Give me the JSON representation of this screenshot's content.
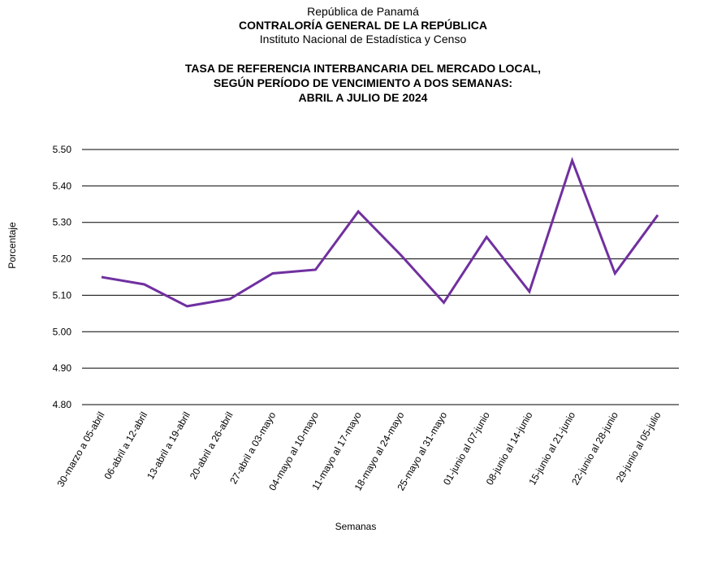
{
  "header": {
    "line1": "República de Panamá",
    "line2": "CONTRALORÍA GENERAL DE LA REPÚBLICA",
    "line3": "Instituto Nacional de Estadística y Censo"
  },
  "chart_data": {
    "type": "line",
    "title": [
      "TASA DE REFERENCIA INTERBANCARIA DEL MERCADO LOCAL,",
      "SEGÚN PERÍODO DE VENCIMIENTO A DOS SEMANAS:",
      "ABRIL A JULIO DE 2024"
    ],
    "xlabel": "Semanas",
    "ylabel": "Porcentaje",
    "ylim": [
      4.8,
      5.5
    ],
    "yticks": [
      "5.50",
      "5.40",
      "5.30",
      "5.20",
      "5.10",
      "5.00",
      "4.90",
      "4.80"
    ],
    "grid": true,
    "line_color": "#7030a0",
    "categories": [
      "30-marzo a 05-abril",
      "06-abril a 12-abril",
      "13-abril a 19-abril",
      "20-abril a 26-abril",
      "27-abril a 03-mayo",
      "04-mayo al 10-mayo",
      "11-mayo al 17-mayo",
      "18-mayo al 24-mayo",
      "25-mayo al 31-mayo",
      "01-junio al 07-junio",
      "08-junio al 14-junio",
      "15-junio al 21-junio",
      "22-junio al 28-junio",
      "29-junio al 05-julio"
    ],
    "values": [
      5.15,
      5.13,
      5.07,
      5.09,
      5.16,
      5.17,
      5.33,
      5.21,
      5.08,
      5.26,
      5.11,
      5.47,
      5.16,
      5.32
    ]
  }
}
